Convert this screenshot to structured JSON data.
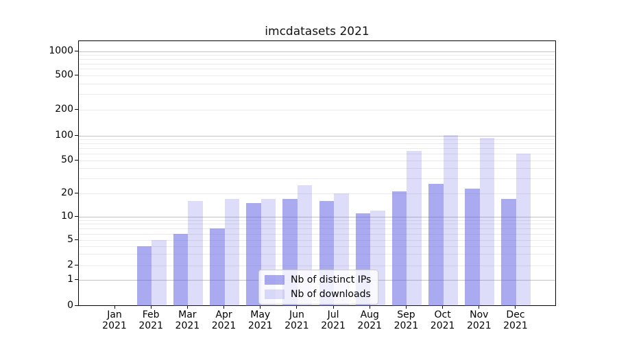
{
  "title": "imcdatasets 2021",
  "chart_data": {
    "type": "bar",
    "title": "imcdatasets 2021",
    "categories": [
      "Jan 2021",
      "Feb 2021",
      "Mar 2021",
      "Apr 2021",
      "May 2021",
      "Jun 2021",
      "Jul 2021",
      "Aug 2021",
      "Sep 2021",
      "Oct 2021",
      "Nov 2021",
      "Dec 2021"
    ],
    "series": [
      {
        "name": "Nb of distinct IPs",
        "color_hex": "#a9a9f1",
        "fill": "rgba(85,85,225,0.5)",
        "values": [
          0,
          4,
          6,
          7,
          15,
          17,
          16,
          11,
          21,
          26,
          23,
          17
        ]
      },
      {
        "name": "Nb of downloads",
        "color_hex": "#dcdcf9",
        "fill": "rgba(85,85,225,0.2)",
        "values": [
          0,
          5,
          16,
          17,
          17,
          25,
          20,
          12,
          65,
          101,
          94,
          61
        ]
      }
    ],
    "yscale": "symlog",
    "y_ticks": [
      0,
      1,
      2,
      5,
      10,
      20,
      50,
      100,
      200,
      500,
      1000
    ],
    "y_tick_labels": [
      "0",
      "1",
      "2",
      "5",
      "10",
      "20",
      "50",
      "100",
      "200",
      "500",
      "1000"
    ],
    "ylim": [
      0,
      1200
    ],
    "xlabel": "",
    "ylabel": "",
    "grid": "both",
    "legend": {
      "labels": [
        "Nb of distinct IPs",
        "Nb of downloads"
      ],
      "position": "lower center"
    }
  }
}
